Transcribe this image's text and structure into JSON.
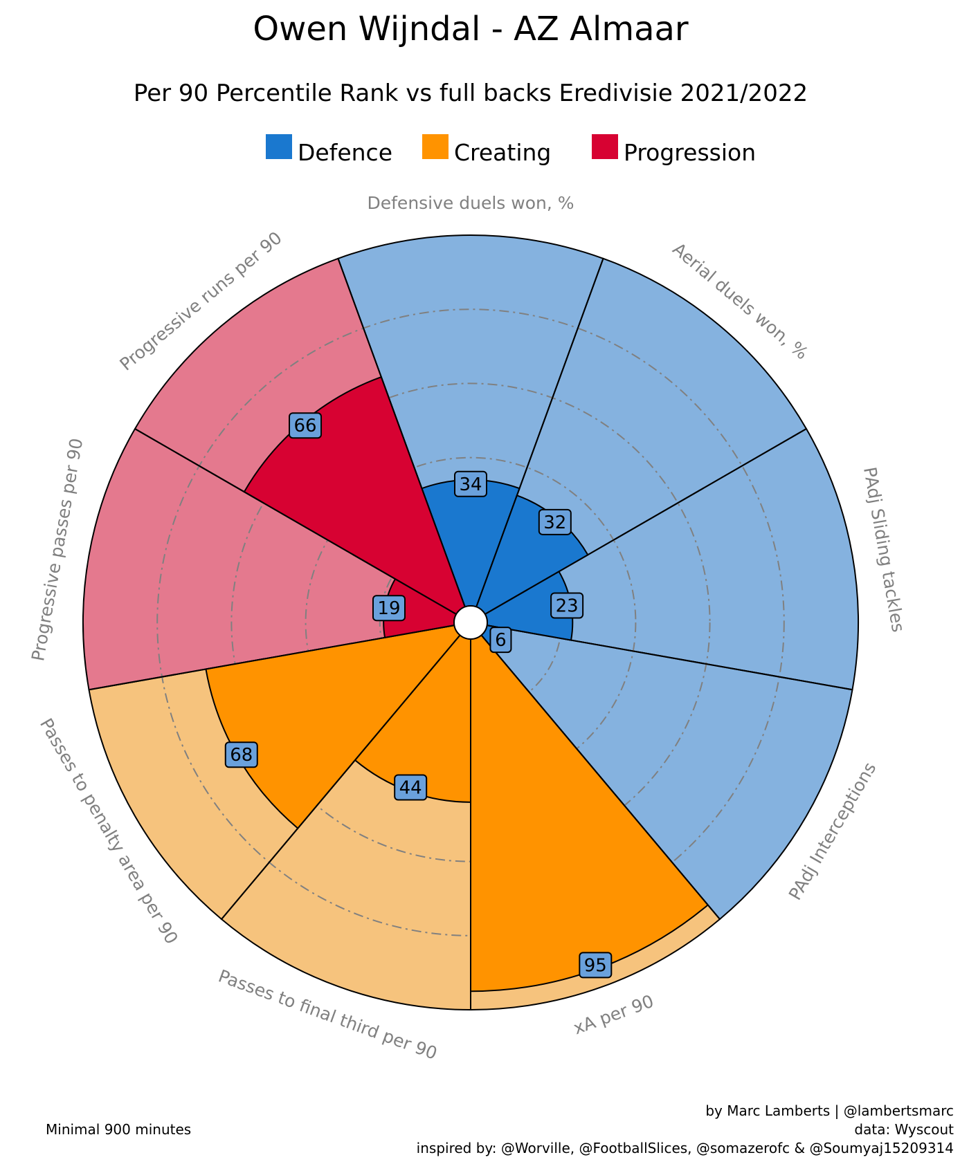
{
  "title": "Owen Wijndal - AZ Almaar",
  "subtitle": "Per 90 Percentile Rank vs full backs Eredivisie 2021/2022",
  "legend": [
    {
      "label": "Defence",
      "color": "#1a78cf"
    },
    {
      "label": "Creating",
      "color": "#ff9300"
    },
    {
      "label": "Progression",
      "color": "#d70232"
    }
  ],
  "footer": {
    "left": "Minimal 900 minutes",
    "right_lines": [
      "by Marc Lamberts | @lambertsmarc",
      "data: Wyscout",
      "inspired by: @Worville, @FootballSlices, @somazerofc & @Soumyaj15209314"
    ]
  },
  "chart_data": {
    "type": "pie",
    "subtype": "polar-bar (pizza) chart",
    "scale": [
      0,
      100
    ],
    "grid": "dash-dot circles",
    "series": [
      {
        "name": "Defence",
        "color": "#1a78cf",
        "background": "#85b2df"
      },
      {
        "name": "Creating",
        "color": "#ff9300",
        "background": "#f6c37d"
      },
      {
        "name": "Progression",
        "color": "#d70232",
        "background": "#e4798e"
      }
    ],
    "parameters": [
      {
        "label": "Defensive duels won, %",
        "value": 34,
        "group": "Defence"
      },
      {
        "label": "Aerial duels won, %",
        "value": 32,
        "group": "Defence"
      },
      {
        "label": "PAdj Sliding tackles",
        "value": 23,
        "group": "Defence"
      },
      {
        "label": "PAdj Interceptions",
        "value": 6,
        "group": "Defence"
      },
      {
        "label": "xA per 90",
        "value": 95,
        "group": "Creating"
      },
      {
        "label": "Passes to final third per 90",
        "value": 44,
        "group": "Creating"
      },
      {
        "label": "Passes to penalty area per 90",
        "value": 68,
        "group": "Creating"
      },
      {
        "label": "Progressive passes per 90",
        "value": 19,
        "group": "Progression"
      },
      {
        "label": "Progressive runs per 90",
        "value": 66,
        "group": "Progression"
      }
    ]
  }
}
